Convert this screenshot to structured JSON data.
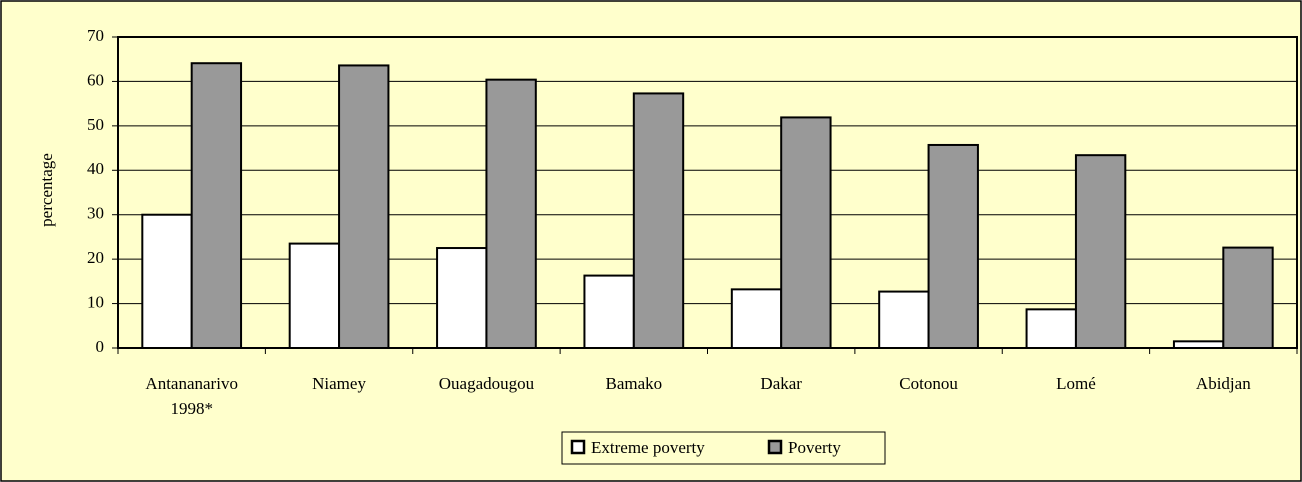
{
  "chart_data": {
    "type": "bar",
    "ylabel": "percentage",
    "categories": [
      "Antananarivo 1998*",
      "Niamey",
      "Ouagadougou",
      "Bamako",
      "Dakar",
      "Cotonou",
      "Lomé",
      "Abidjan"
    ],
    "series": [
      {
        "name": "Extreme poverty",
        "color": "#ffffff",
        "values": [
          30,
          23.5,
          22.5,
          16.3,
          13.2,
          12.7,
          8.7,
          1.5
        ]
      },
      {
        "name": "Poverty",
        "color": "#999999",
        "values": [
          64.1,
          63.6,
          60.4,
          57.3,
          51.9,
          45.7,
          43.4,
          22.6
        ]
      }
    ],
    "ylim": [
      0,
      70
    ],
    "yticks": [
      0,
      10,
      20,
      30,
      40,
      50,
      60,
      70
    ],
    "grid": true,
    "legend": "bottom"
  }
}
